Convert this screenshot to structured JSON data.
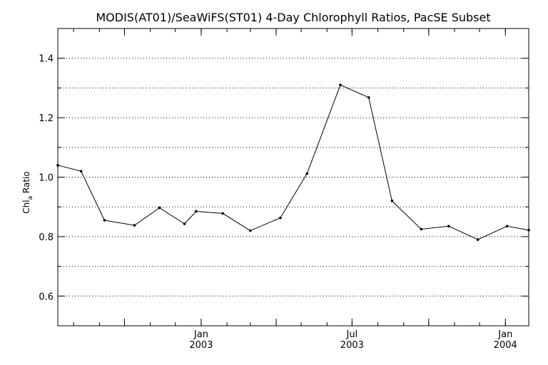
{
  "chart_data": {
    "type": "line",
    "title": "MODIS(AT01)/SeaWiFS(ST01) 4-Day Chlorophyll Ratios, PacSE Subset",
    "ylabel": {
      "main": "Chl",
      "sub": "a",
      "rest": " Ratio"
    },
    "ylim": [
      0.5,
      1.5
    ],
    "xlim": [
      "2002-07-13",
      "2004-01-29"
    ],
    "grid": true,
    "y_ticks": [
      {
        "value": 0.6,
        "label": "0.6"
      },
      {
        "value": 0.8,
        "label": "0.8"
      },
      {
        "value": 1.0,
        "label": "1.0"
      },
      {
        "value": 1.2,
        "label": "1.2"
      },
      {
        "value": 1.4,
        "label": "1.4"
      }
    ],
    "y_minor_ticks": [
      0.5,
      0.7,
      0.9,
      1.1,
      1.3,
      1.5
    ],
    "x_ticks": [
      {
        "date": "2002-10-01",
        "label1": "",
        "label2": ""
      },
      {
        "date": "2003-01-01",
        "label1": "Jan",
        "label2": "2003"
      },
      {
        "date": "2003-04-01",
        "label1": "",
        "label2": ""
      },
      {
        "date": "2003-07-01",
        "label1": "Jul",
        "label2": "2003"
      },
      {
        "date": "2003-10-01",
        "label1": "",
        "label2": ""
      },
      {
        "date": "2004-01-01",
        "label1": "Jan",
        "label2": "2004"
      }
    ],
    "series": [
      {
        "points": [
          {
            "x": "2002-07-13",
            "y": 1.04
          },
          {
            "x": "2002-08-10",
            "y": 1.02
          },
          {
            "x": "2002-09-07",
            "y": 0.855
          },
          {
            "x": "2002-10-13",
            "y": 0.838
          },
          {
            "x": "2002-11-12",
            "y": 0.897
          },
          {
            "x": "2002-12-12",
            "y": 0.843
          },
          {
            "x": "2002-12-26",
            "y": 0.885
          },
          {
            "x": "2003-01-27",
            "y": 0.878
          },
          {
            "x": "2003-03-01",
            "y": 0.82
          },
          {
            "x": "2003-04-06",
            "y": 0.863
          },
          {
            "x": "2003-05-08",
            "y": 1.012
          },
          {
            "x": "2003-06-17",
            "y": 1.31
          },
          {
            "x": "2003-07-21",
            "y": 1.268
          },
          {
            "x": "2003-08-18",
            "y": 0.92
          },
          {
            "x": "2003-09-22",
            "y": 0.825
          },
          {
            "x": "2003-10-25",
            "y": 0.835
          },
          {
            "x": "2003-11-29",
            "y": 0.79
          },
          {
            "x": "2004-01-03",
            "y": 0.835
          },
          {
            "x": "2004-01-29",
            "y": 0.822
          }
        ]
      }
    ]
  }
}
